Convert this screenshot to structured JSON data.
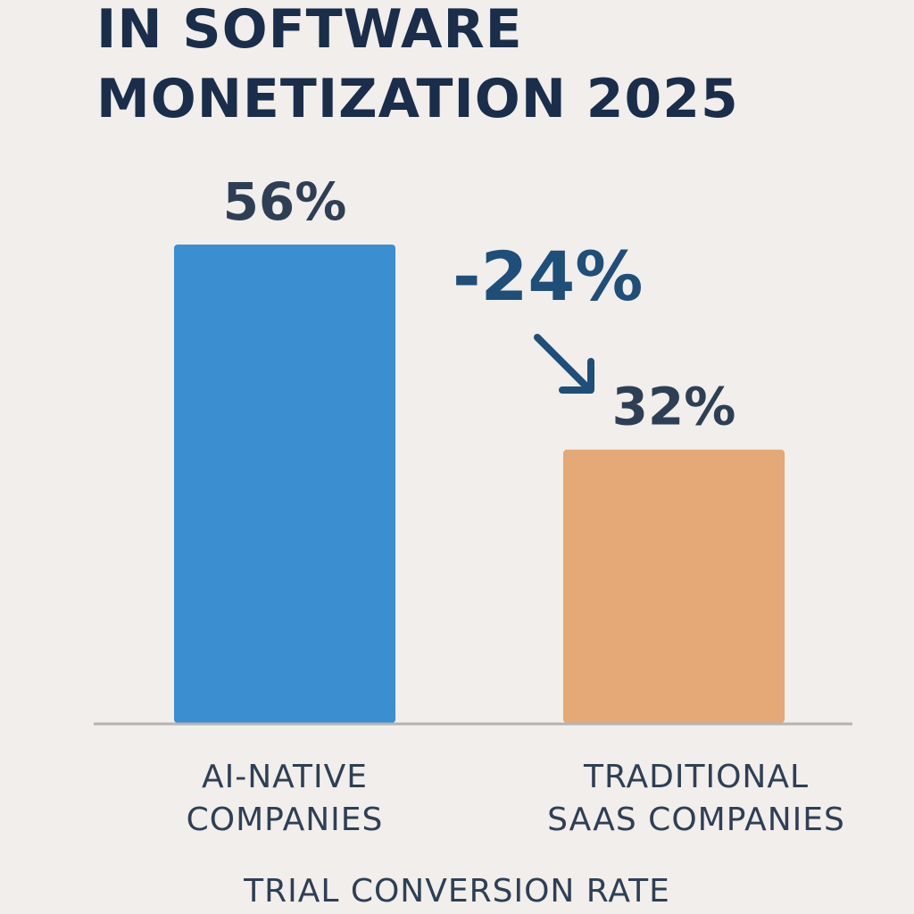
{
  "title_lines": [
    "IN SOFTWARE",
    "MONETIZATION 2025"
  ],
  "colors": {
    "background": "#f1eeeb",
    "title": "#1a2d4a",
    "text": "#2e3f55",
    "axis": "#b4b4b4",
    "arrow": "#1f4e79"
  },
  "chart_data": {
    "type": "bar",
    "title": "IN SOFTWARE MONETIZATION 2025",
    "xlabel": "TRIAL CONVERSION RATE",
    "ylabel": "",
    "ylim": [
      0,
      56
    ],
    "grid": false,
    "categories": [
      "AI-NATIVE COMPANIES",
      "TRADITIONAL SAAS COMPANIES"
    ],
    "category_lines": [
      [
        "AI-NATIVE",
        "COMPANIES"
      ],
      [
        "TRADITIONAL",
        "SAAS COMPANIES"
      ]
    ],
    "values": [
      56,
      32
    ],
    "value_labels": [
      "56%",
      "32%"
    ],
    "bar_colors": [
      "#3b8ed0",
      "#e5a877"
    ],
    "annotation": {
      "text": "-24%",
      "icon": "arrow-down-right-icon"
    }
  }
}
